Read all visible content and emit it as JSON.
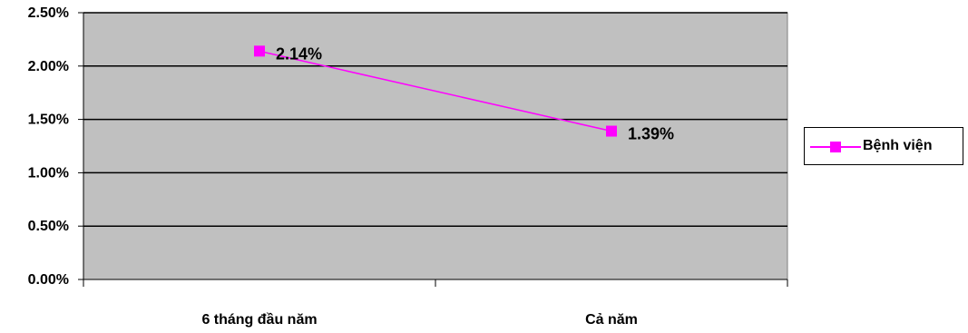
{
  "chart_data": {
    "type": "line",
    "categories": [
      "6 tháng đầu năm",
      "Cả năm"
    ],
    "series": [
      {
        "name": "Bệnh viện",
        "values": [
          2.14,
          1.39
        ],
        "data_labels": [
          "2.14%",
          "1.39%"
        ]
      }
    ],
    "y_ticks": [
      "0.00%",
      "0.50%",
      "1.00%",
      "1.50%",
      "2.00%",
      "2.50%"
    ],
    "ylim": [
      0,
      2.5
    ],
    "grid": true,
    "legend_position": "right",
    "colors": {
      "series": "#ff00ff",
      "plot_background": "#c0c0c0",
      "gridline": "#000000"
    }
  }
}
